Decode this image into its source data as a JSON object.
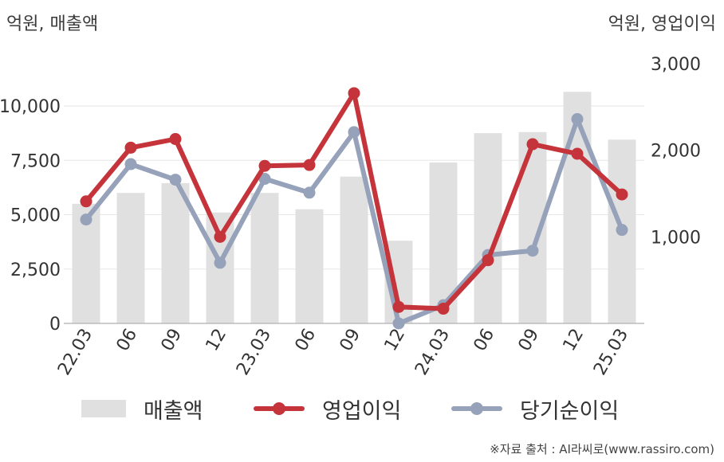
{
  "colors": {
    "bar": "#e0e0e0",
    "operating_profit": "#c4343a",
    "net_income": "#96a1ba",
    "grid": "#e6e6e6",
    "axis_text": "#333333"
  },
  "header": {
    "left_unit": "억원, 매출액",
    "right_unit": "억원, 영업이익"
  },
  "legend": {
    "revenue": "매출액",
    "operating_profit": "영업이익",
    "net_income": "당기순이익"
  },
  "footer": {
    "source": "※자료 출처 : AI라씨로(www.rassiro.com)"
  },
  "chart_data": {
    "type": "bar",
    "categories": [
      "22.03",
      "06",
      "09",
      "12",
      "23.03",
      "06",
      "09",
      "12",
      "24.03",
      "06",
      "09",
      "12",
      "25.03"
    ],
    "left_axis": {
      "ylim": [
        0,
        10000
      ],
      "ticks": [
        0,
        2500,
        5000,
        7500,
        10000
      ],
      "tick_labels": [
        "0",
        "2,500",
        "5,000",
        "7,500",
        "10,000"
      ]
    },
    "right_axis": {
      "ylim": [
        0,
        3000
      ],
      "ticks": [
        1000,
        2000,
        3000
      ],
      "tick_labels": [
        "1,000",
        "2,000",
        "3,000"
      ]
    },
    "grid": true,
    "legend_position": "bottom",
    "series": [
      {
        "name": "매출액",
        "type": "bar",
        "axis": "left",
        "values": [
          5500,
          6000,
          6450,
          5100,
          6000,
          5250,
          6750,
          3800,
          7400,
          8750,
          8800,
          10650,
          8450
        ]
      },
      {
        "name": "영업이익",
        "type": "line",
        "axis": "right",
        "values": [
          1410,
          2030,
          2130,
          1000,
          1820,
          1830,
          2660,
          190,
          170,
          730,
          2070,
          1960,
          1490
        ]
      },
      {
        "name": "당기순이익",
        "type": "line",
        "axis": "right",
        "values": [
          1200,
          1840,
          1660,
          700,
          1670,
          1510,
          2210,
          0,
          210,
          790,
          840,
          2360,
          1080
        ]
      }
    ]
  }
}
